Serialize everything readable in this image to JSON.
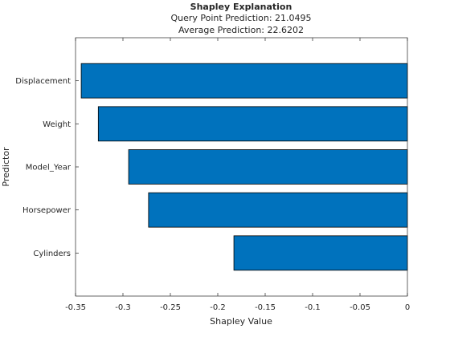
{
  "figure": {
    "title": "Shapley Explanation",
    "subtitle_lines": [
      "Query Point Prediction: 21.0495",
      "Average Prediction: 22.6202"
    ]
  },
  "colors": {
    "bar_fill": "#0072BD",
    "bar_edge": "#000000",
    "axis": "#262626",
    "background": "#ffffff"
  },
  "chart_data": {
    "type": "bar",
    "orientation": "horizontal",
    "title": "Shapley Explanation",
    "subtitle": [
      "Query Point Prediction: 21.0495",
      "Average Prediction: 22.6202"
    ],
    "xlabel": "Shapley Value",
    "ylabel": "Predictor",
    "categories": [
      "Displacement",
      "Weight",
      "Model_Year",
      "Horsepower",
      "Cylinders"
    ],
    "values": [
      -0.344,
      -0.326,
      -0.294,
      -0.273,
      -0.183
    ],
    "xlim": [
      -0.35,
      0
    ],
    "xticks": [
      -0.35,
      -0.3,
      -0.25,
      -0.2,
      -0.15,
      -0.1,
      -0.05,
      0
    ],
    "xtick_labels": [
      "-0.35",
      "-0.3",
      "-0.25",
      "-0.2",
      "-0.15",
      "-0.1",
      "-0.05",
      "0"
    ],
    "grid": false,
    "legend": "none"
  }
}
